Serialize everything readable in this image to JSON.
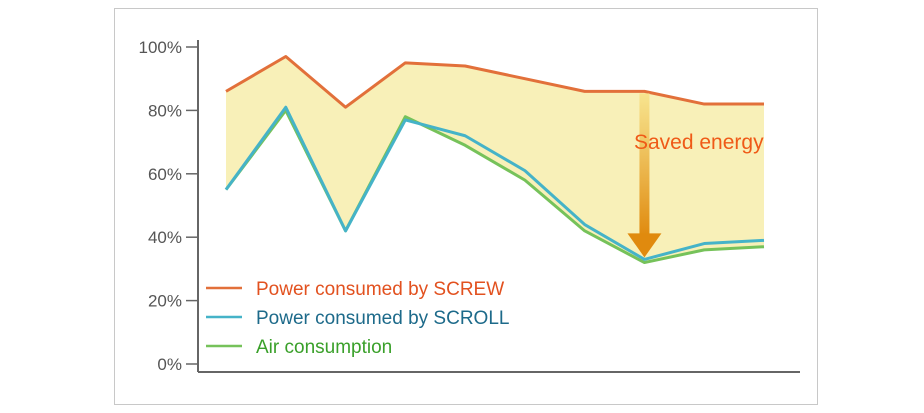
{
  "chart_data": {
    "type": "line",
    "x": [
      1,
      2,
      3,
      4,
      5,
      6,
      7,
      8,
      9,
      10
    ],
    "series": [
      {
        "name": "Power consumed by SCREW",
        "color": "#e2703a",
        "values": [
          86,
          97,
          81,
          95,
          94,
          90,
          86,
          86,
          82,
          82
        ]
      },
      {
        "name": "Power consumed by SCROLL",
        "color": "#45b3c8",
        "values": [
          55,
          81,
          42,
          77,
          72,
          61,
          44,
          33,
          38,
          39
        ]
      },
      {
        "name": "Air consumption",
        "color": "#76c25a",
        "values": [
          55,
          80,
          42,
          78,
          69,
          58,
          42,
          32,
          36,
          37
        ]
      }
    ],
    "legend_text_colors": [
      "#e2511f",
      "#1d6a8a",
      "#3aa02a"
    ],
    "ylim": [
      0,
      100
    ],
    "yticks": [
      "0%",
      "20%",
      "40%",
      "60%",
      "80%",
      "100%"
    ],
    "fill_color": "#f8f0b8",
    "annotation": {
      "text": "Saved energy",
      "color": "#ef5a17",
      "x": 8,
      "from": 86,
      "to": 33
    },
    "legend_position": "bottom-left",
    "grid": false
  }
}
